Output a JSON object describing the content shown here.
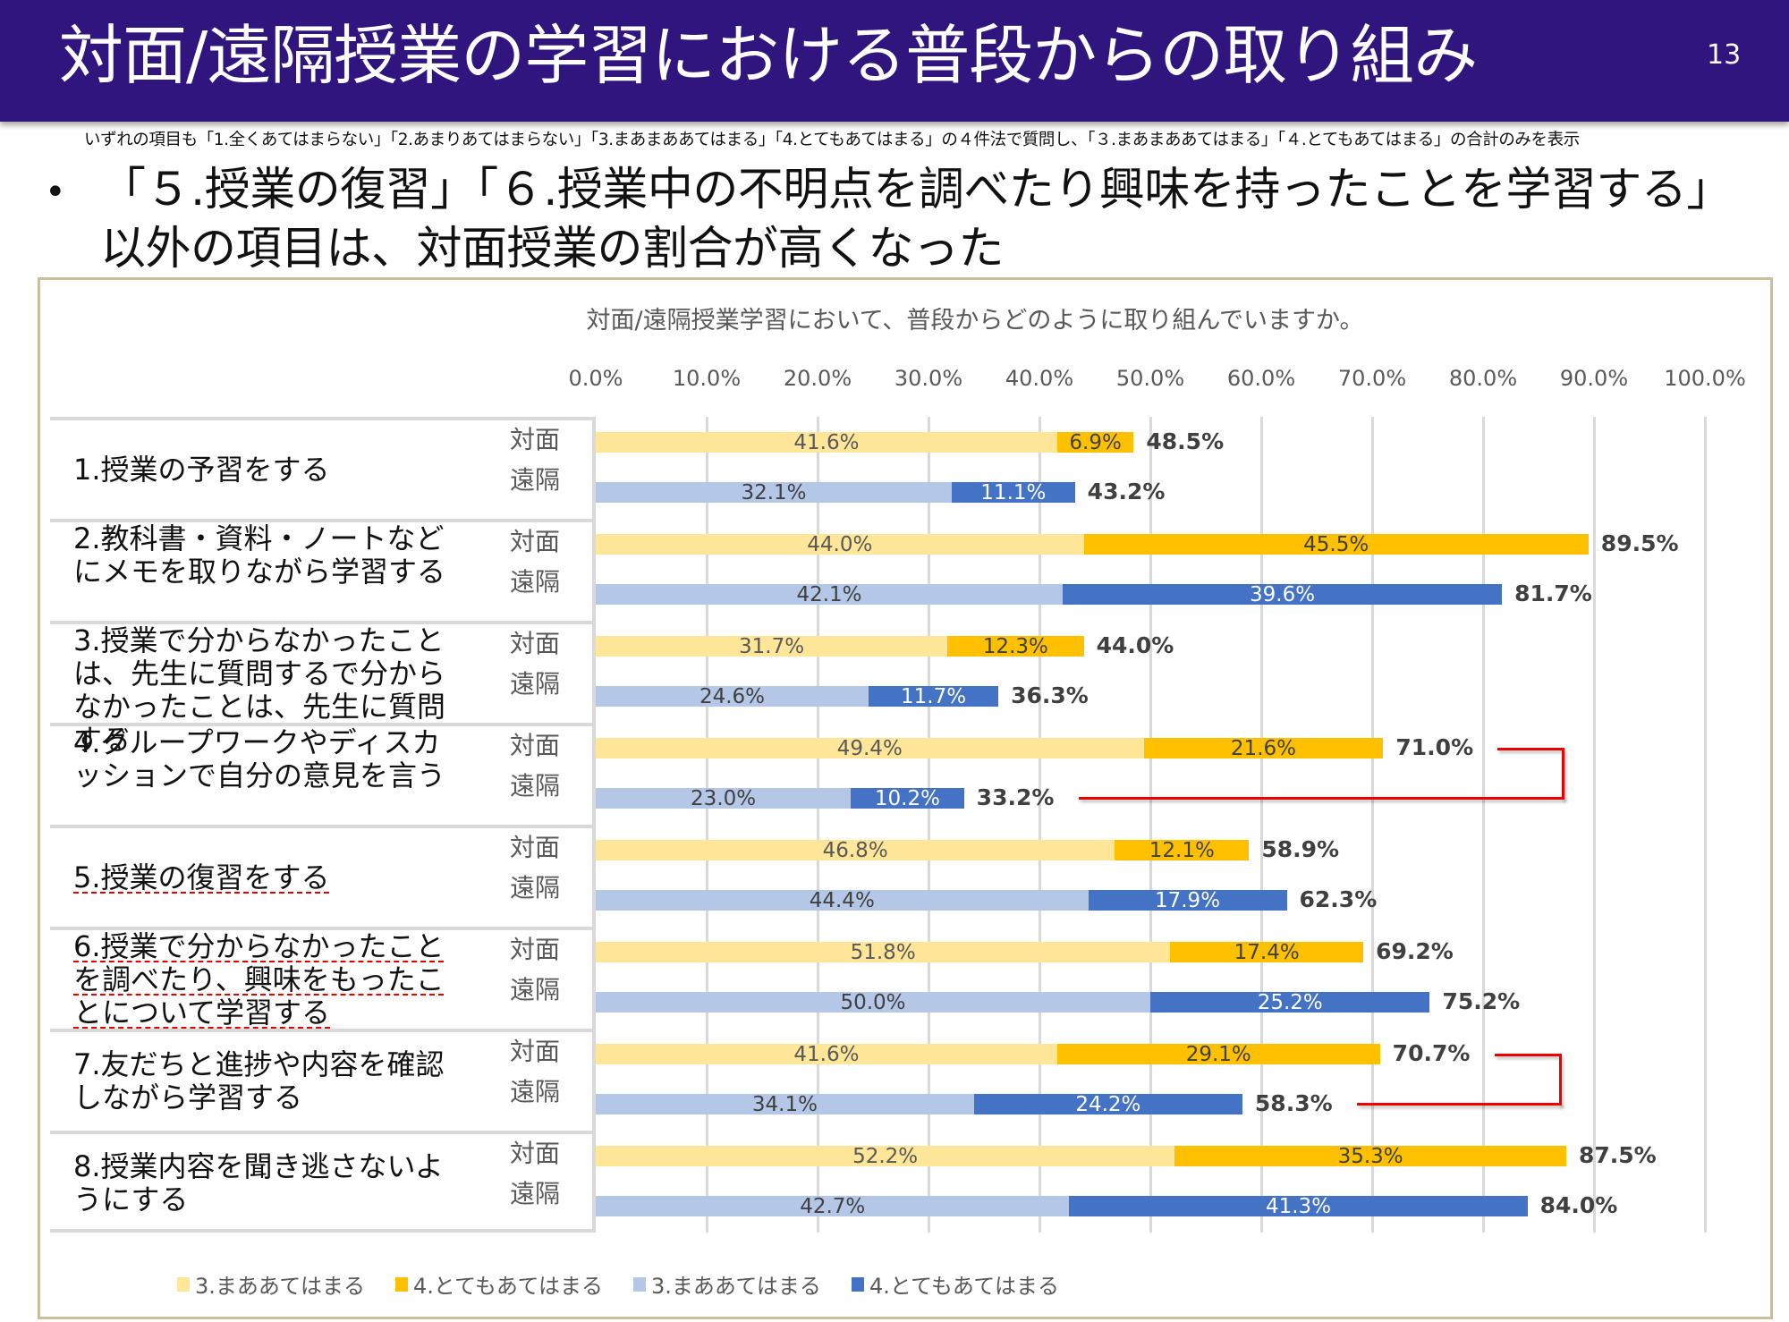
{
  "header": {
    "title": "対面/遠隔授業の学習における普段からの取り組み",
    "page_number": "13"
  },
  "note": "いずれの項目も「1.全くあてはまらない」「2.あまりあてはまらない」「3.まあまああてはまる」「4.とてもあてはまる」の４件法で質問し、「３.まあまああてはまる」「４.とてもあてはまる」の合計のみを表示",
  "bullet": {
    "symbol": "•",
    "text": "「５.授業の復習」「６.授業中の不明点を調べたり興味を持ったことを学習する」以外の項目は、対面授業の割合が高くなった"
  },
  "colors": {
    "header_bg": "#31157f",
    "taimen_3": "#ffe699",
    "taimen_4": "#ffc000",
    "enkaku_3": "#b4c7e7",
    "enkaku_4": "#4472c4",
    "highlight": "#ee0000",
    "frame": "#c8bf9b"
  },
  "chart_data": {
    "type": "bar",
    "orientation": "horizontal",
    "stacked": true,
    "title": "対面/遠隔授業学習において、普段からどのように取り組んでいますか。",
    "xlabel": "",
    "ylabel": "",
    "xlim": [
      0,
      100
    ],
    "x_ticks": [
      "0.0%",
      "10.0%",
      "20.0%",
      "30.0%",
      "40.0%",
      "50.0%",
      "60.0%",
      "70.0%",
      "80.0%",
      "90.0%",
      "100.0%"
    ],
    "grid": true,
    "legend_position": "bottom",
    "legend": [
      {
        "label": "3.まああてはまる",
        "color": "#ffe699"
      },
      {
        "label": "4.とてもあてはまる",
        "color": "#ffc000"
      },
      {
        "label": "3.まああてはまる",
        "color": "#b4c7e7"
      },
      {
        "label": "4.とてもあてはまる",
        "color": "#4472c4"
      }
    ],
    "mode_labels": {
      "taimen": "対面",
      "enkaku": "遠隔"
    },
    "categories": [
      {
        "label": "1.授業の予習をする",
        "underline": false,
        "taimen": {
          "v3": 41.6,
          "v4": 6.9,
          "total": 48.5
        },
        "enkaku": {
          "v3": 32.1,
          "v4": 11.1,
          "total": 43.2
        }
      },
      {
        "label": "2.教科書・資料・ノートなどにメモを取りながら学習する",
        "underline": false,
        "taimen": {
          "v3": 44.0,
          "v4": 45.5,
          "total": 89.5
        },
        "enkaku": {
          "v3": 42.1,
          "v4": 39.6,
          "total": 81.7
        }
      },
      {
        "label": "3.授業で分からなかったことは、先生に質問するで分からなかったことは、先生に質問する",
        "underline": false,
        "taimen": {
          "v3": 31.7,
          "v4": 12.3,
          "total": 44.0
        },
        "enkaku": {
          "v3": 24.6,
          "v4": 11.7,
          "total": 36.3
        }
      },
      {
        "label": "4.グループワークやディスカッションで自分の意見を言う",
        "underline": false,
        "bracket": true,
        "taimen": {
          "v3": 49.4,
          "v4": 21.6,
          "total": 71.0
        },
        "enkaku": {
          "v3": 23.0,
          "v4": 10.2,
          "total": 33.2
        }
      },
      {
        "label": "5.授業の復習をする",
        "underline": true,
        "taimen": {
          "v3": 46.8,
          "v4": 12.1,
          "total": 58.9
        },
        "enkaku": {
          "v3": 44.4,
          "v4": 17.9,
          "total": 62.3
        }
      },
      {
        "label": "6.授業で分からなかったことを調べたり、興味をもったことについて学習する",
        "underline": true,
        "taimen": {
          "v3": 51.8,
          "v4": 17.4,
          "total": 69.2
        },
        "enkaku": {
          "v3": 50.0,
          "v4": 25.2,
          "total": 75.2
        }
      },
      {
        "label": "7.友だちと進捗や内容を確認しながら学習する",
        "underline": false,
        "bracket": true,
        "taimen": {
          "v3": 41.6,
          "v4": 29.1,
          "total": 70.7
        },
        "enkaku": {
          "v3": 34.1,
          "v4": 24.2,
          "total": 58.3
        }
      },
      {
        "label": "8.授業内容を聞き逃さないようにする",
        "underline": false,
        "taimen": {
          "v3": 52.2,
          "v4": 35.3,
          "total": 87.5
        },
        "enkaku": {
          "v3": 42.7,
          "v4": 41.3,
          "total": 84.0
        }
      }
    ]
  }
}
